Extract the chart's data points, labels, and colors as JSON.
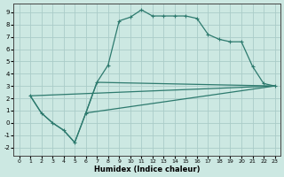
{
  "xlabel": "Humidex (Indice chaleur)",
  "background_color": "#cce8e2",
  "grid_color": "#aaccc8",
  "line_color": "#2d7a6e",
  "xlim": [
    -0.5,
    23.5
  ],
  "ylim": [
    -2.7,
    9.7
  ],
  "xticks": [
    0,
    1,
    2,
    3,
    4,
    5,
    6,
    7,
    8,
    9,
    10,
    11,
    12,
    13,
    14,
    15,
    16,
    17,
    18,
    19,
    20,
    21,
    22,
    23
  ],
  "yticks": [
    -2,
    -1,
    0,
    1,
    2,
    3,
    4,
    5,
    6,
    7,
    8,
    9
  ],
  "curve1_x": [
    1,
    2,
    3,
    4,
    5,
    6,
    7,
    8,
    9,
    10,
    11,
    12,
    13,
    14,
    15,
    16,
    17,
    18,
    19,
    20,
    21,
    22,
    23
  ],
  "curve1_y": [
    2.2,
    0.8,
    0.0,
    -0.6,
    -1.6,
    0.8,
    3.3,
    4.7,
    8.3,
    8.6,
    9.2,
    8.7,
    8.7,
    8.7,
    8.7,
    8.5,
    7.2,
    6.8,
    6.6,
    6.6,
    4.6,
    3.2,
    3.0
  ],
  "curve2_x": [
    1,
    2,
    3,
    4,
    5,
    6,
    7,
    23
  ],
  "curve2_y": [
    2.2,
    0.8,
    0.0,
    -0.6,
    -1.6,
    0.8,
    3.3,
    3.0
  ],
  "line3_x": [
    1,
    23
  ],
  "line3_y": [
    2.2,
    3.0
  ],
  "line4_x": [
    6,
    23
  ],
  "line4_y": [
    0.8,
    3.0
  ]
}
